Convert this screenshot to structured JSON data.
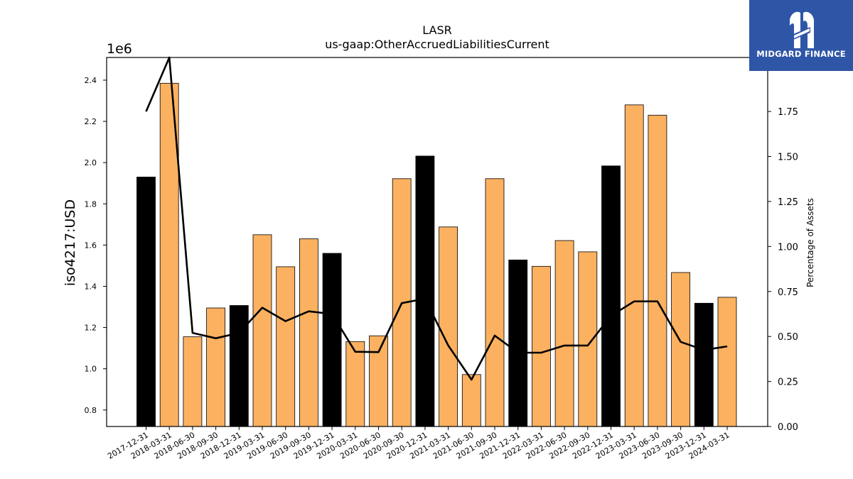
{
  "brand": {
    "name": "MIDGARD FINANCE",
    "bg_color": "#2f56a6"
  },
  "chart_data": {
    "type": "bar",
    "title": "LASR",
    "subtitle": "us-gaap:OtherAccruedLiabilitiesCurrent",
    "ylabel": "iso4217:USD",
    "y_offset_label": "1e6",
    "y2label": "Percentage of Assets",
    "ylim": [
      0.72,
      2.51
    ],
    "y2lim": [
      0.0,
      2.05
    ],
    "yticks": [
      "0.8",
      "1.0",
      "1.2",
      "1.4",
      "1.6",
      "1.8",
      "2.0",
      "2.2",
      "2.4"
    ],
    "y2ticks": [
      "0.00",
      "0.25",
      "0.50",
      "0.75",
      "1.00",
      "1.25",
      "1.50",
      "1.75"
    ],
    "categories": [
      "2017-12-31",
      "2018-03-31",
      "2018-06-30",
      "2018-09-30",
      "2018-12-31",
      "2019-03-31",
      "2019-06-30",
      "2019-09-30",
      "2019-12-31",
      "2020-03-31",
      "2020-06-30",
      "2020-09-30",
      "2020-12-31",
      "2021-03-31",
      "2021-06-30",
      "2021-09-30",
      "2021-12-31",
      "2022-03-31",
      "2022-06-30",
      "2022-09-30",
      "2022-12-31",
      "2023-03-31",
      "2023-06-30",
      "2023-09-30",
      "2023-12-31",
      "2024-03-31"
    ],
    "series": [
      {
        "axis": "left",
        "type": "bar",
        "values": [
          1.93,
          2.385,
          1.155,
          1.295,
          1.307,
          1.65,
          1.495,
          1.63,
          1.56,
          1.132,
          1.16,
          1.922,
          2.032,
          1.688,
          0.972,
          1.922,
          1.528,
          1.497,
          1.622,
          1.567,
          1.984,
          2.28,
          2.23,
          1.467,
          1.318,
          1.347
        ],
        "colors": [
          "#000000",
          "#fbb160",
          "#fbb160",
          "#fbb160",
          "#000000",
          "#fbb160",
          "#fbb160",
          "#fbb160",
          "#000000",
          "#fbb160",
          "#fbb160",
          "#fbb160",
          "#000000",
          "#fbb160",
          "#fbb160",
          "#fbb160",
          "#000000",
          "#fbb160",
          "#fbb160",
          "#fbb160",
          "#000000",
          "#fbb160",
          "#fbb160",
          "#fbb160",
          "#000000",
          "#fbb160"
        ]
      },
      {
        "axis": "right",
        "type": "line",
        "color": "#000000",
        "values": [
          1.75,
          2.05,
          0.52,
          0.49,
          0.52,
          0.66,
          0.585,
          0.64,
          0.625,
          0.415,
          0.413,
          0.685,
          0.71,
          0.45,
          0.26,
          0.505,
          0.41,
          0.41,
          0.45,
          0.45,
          0.615,
          0.695,
          0.695,
          0.47,
          0.425,
          0.445
        ]
      }
    ],
    "grid": false,
    "legend": "none"
  }
}
